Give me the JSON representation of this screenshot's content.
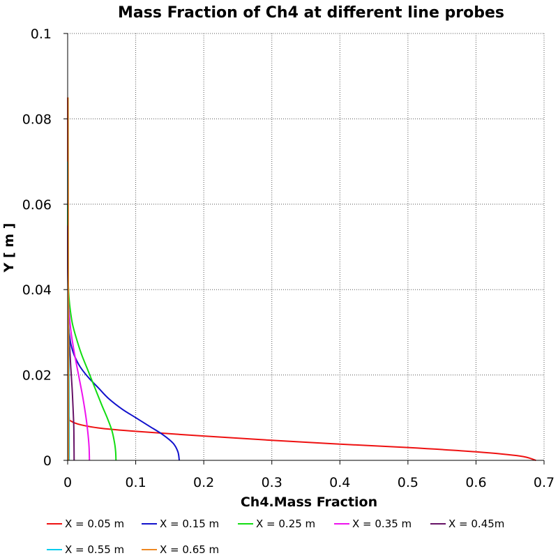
{
  "chart_data": {
    "type": "line",
    "title": "Mass Fraction of Ch4 at different line probes",
    "xlabel": "Ch4.Mass Fraction",
    "ylabel": "Y [ m ]",
    "xlim": [
      0,
      0.7
    ],
    "ylim": [
      0,
      0.1
    ],
    "xticks": [
      "0",
      "0.1",
      "0.2",
      "0.3",
      "0.4",
      "0.5",
      "0.6",
      "0.7"
    ],
    "yticks": [
      "0",
      "0.02",
      "0.04",
      "0.06",
      "0.08",
      "0.1"
    ],
    "grid": true,
    "legend_position": "bottom",
    "series": [
      {
        "name": "X = 0.05 m",
        "color": "#ee1111",
        "x": [
          0.688,
          0.665,
          0.6,
          0.5,
          0.4,
          0.3,
          0.2,
          0.1,
          0.05,
          0.02,
          0.005,
          0.002,
          0.001,
          0.0005,
          0.0002,
          0.0001
        ],
        "y": [
          0.0,
          0.001,
          0.002,
          0.003,
          0.0038,
          0.0047,
          0.0057,
          0.0068,
          0.0075,
          0.0083,
          0.0092,
          0.0105,
          0.02,
          0.04,
          0.06,
          0.085
        ]
      },
      {
        "name": "X = 0.15 m",
        "color": "#1111cc",
        "x": [
          0.164,
          0.162,
          0.155,
          0.14,
          0.12,
          0.1,
          0.08,
          0.06,
          0.045,
          0.03,
          0.018,
          0.01,
          0.005,
          0.003,
          0.0015,
          0.0008,
          0.0003,
          0.0001
        ],
        "y": [
          0.0,
          0.002,
          0.004,
          0.006,
          0.008,
          0.01,
          0.012,
          0.0145,
          0.017,
          0.0195,
          0.022,
          0.0245,
          0.027,
          0.029,
          0.031,
          0.035,
          0.045,
          0.06
        ]
      },
      {
        "name": "X = 0.25 m",
        "color": "#11dd11",
        "x": [
          0.071,
          0.0705,
          0.069,
          0.065,
          0.058,
          0.05,
          0.04,
          0.03,
          0.02,
          0.012,
          0.007,
          0.004,
          0.002,
          0.001,
          0.0003,
          0.0001
        ],
        "y": [
          0.0,
          0.002,
          0.004,
          0.007,
          0.01,
          0.013,
          0.017,
          0.021,
          0.025,
          0.029,
          0.032,
          0.035,
          0.038,
          0.041,
          0.047,
          0.06
        ]
      },
      {
        "name": "X = 0.35 m",
        "color": "#ee11ee",
        "x": [
          0.032,
          0.0315,
          0.03,
          0.027,
          0.022,
          0.016,
          0.01,
          0.005,
          0.0025,
          0.001,
          0.0003,
          0.0001
        ],
        "y": [
          0.0,
          0.003,
          0.006,
          0.01,
          0.015,
          0.02,
          0.025,
          0.03,
          0.034,
          0.038,
          0.045,
          0.055
        ]
      },
      {
        "name": "X = 0.45m",
        "color": "#661166",
        "x": [
          0.0095,
          0.0093,
          0.009,
          0.008,
          0.0065,
          0.0045,
          0.0028,
          0.0015,
          0.0007,
          0.0002,
          0.0001
        ],
        "y": [
          0.0,
          0.004,
          0.008,
          0.012,
          0.017,
          0.022,
          0.027,
          0.032,
          0.037,
          0.045,
          0.055
        ]
      },
      {
        "name": "X = 0.55 m",
        "color": "#00ccee",
        "x": [
          0.0022,
          0.0021,
          0.0019,
          0.0015,
          0.001,
          0.0006,
          0.0003,
          0.0001
        ],
        "y": [
          0.0,
          0.01,
          0.02,
          0.03,
          0.04,
          0.05,
          0.06,
          0.07
        ]
      },
      {
        "name": "X = 0.65 m",
        "color": "#ee8822",
        "x": [
          0.0012,
          0.0012,
          0.0011,
          0.001,
          0.0009,
          0.0008,
          0.0007,
          0.0006
        ],
        "y": [
          0.0,
          0.015,
          0.03,
          0.045,
          0.06,
          0.07,
          0.08,
          0.085
        ]
      }
    ]
  }
}
